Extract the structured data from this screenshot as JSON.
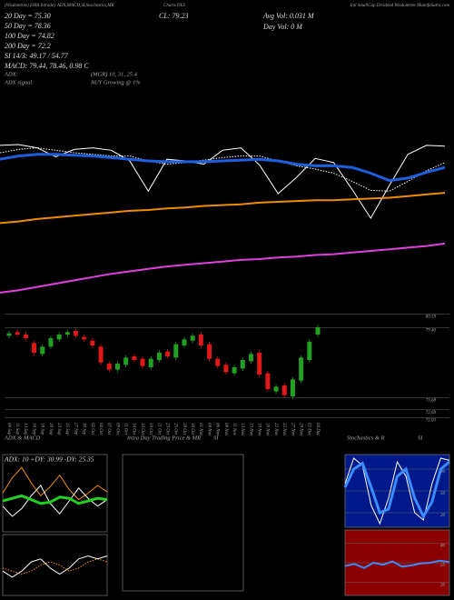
{
  "header": {
    "top_left": "(Wisdomtree) EMA Intraday ADX,MACD,SI,Stochastics,MR",
    "top_mid": "Charts DLS",
    "top_right": "Intl SmallCap Dividend Wisdomtree MunafaSutra.com",
    "ma20": "20 Day = 75.30",
    "ma50": "50 Day = 78.36",
    "ma100": "100 Day = 74.82",
    "ma200": "200 Day = 72.2",
    "si": "SI 14/3: 49.17 / 54.77",
    "macd": "MACD: 79.44, 78.46, 0.98 C",
    "close": "CL: 79.23",
    "avg_vol": "Avg Vol: 0.031 M",
    "day_vol": "Day Vol: 0 M",
    "adx_label": "ADX:",
    "adx_value": "(MGR) 10, 31, 25.4",
    "adx_signal_label": "ADX signal:",
    "adx_signal": "BUY Growing @ 1%"
  },
  "intraday": {
    "title": "Intra Day Trading Price & MR",
    "title_right": "SI"
  },
  "chart_data": [
    {
      "type": "line",
      "ylim": [
        62,
        82
      ],
      "series": [
        {
          "color": "#ffffff",
          "values": [
            80.9,
            81.0,
            80.6,
            79.5,
            80.4,
            80.6,
            80.3,
            79.0,
            75.3,
            79.2,
            79.0,
            78.6,
            80.3,
            80.6,
            78.5,
            75.0,
            77.0,
            79.3,
            78.8,
            75.5,
            72.0,
            76.0,
            79.8,
            80.9,
            80.8
          ]
        },
        {
          "color": "#ffffff",
          "dash": true,
          "values": [
            80.0,
            80.4,
            80.6,
            80.3,
            80.0,
            79.8,
            79.6,
            79.6,
            79.0,
            78.6,
            78.8,
            79.1,
            79.4,
            79.6,
            79.6,
            79.0,
            78.4,
            78.0,
            77.5,
            76.5,
            75.4,
            75.3,
            76.5,
            77.8,
            78.8
          ]
        },
        {
          "color": "#1e5fe0",
          "width": 3,
          "values": [
            79.2,
            79.6,
            79.8,
            79.8,
            79.7,
            79.6,
            79.4,
            79.2,
            79.0,
            78.9,
            78.9,
            78.9,
            79.0,
            79.1,
            79.2,
            79.0,
            78.6,
            78.4,
            78.4,
            78.2,
            77.5,
            76.6,
            76.9,
            77.6,
            78.2
          ]
        },
        {
          "color": "#f08c00",
          "width": 2,
          "values": [
            71.4,
            71.6,
            71.9,
            72.1,
            72.3,
            72.5,
            72.7,
            72.9,
            73.0,
            73.2,
            73.3,
            73.5,
            73.6,
            73.7,
            73.9,
            74.0,
            74.1,
            74.2,
            74.2,
            74.3,
            74.4,
            74.5,
            74.7,
            74.9,
            75.1
          ]
        },
        {
          "color": "#e040e0",
          "width": 2,
          "values": [
            62.9,
            63.2,
            63.6,
            64.0,
            64.4,
            64.8,
            65.2,
            65.5,
            65.8,
            66.1,
            66.3,
            66.5,
            66.7,
            66.9,
            67.0,
            67.2,
            67.3,
            67.5,
            67.6,
            67.8,
            68.0,
            68.2,
            68.4,
            68.6,
            68.9
          ]
        }
      ]
    },
    {
      "type": "candlestick",
      "ylim": [
        72,
        81
      ],
      "yticks": [
        80.59,
        79.46,
        73.68,
        72.69,
        72.03
      ],
      "up_color": "#22a022",
      "down_color": "#e01818",
      "categories": [
        "09 Sep",
        "11 Sep",
        "13 Sep",
        "16 Sep",
        "18 Sep",
        "20 Sep",
        "23 Sep",
        "25 Sep",
        "27 Sep",
        "30 Sep",
        "02 Oct",
        "04 Oct",
        "07 Oct",
        "09 Oct",
        "11 Oct",
        "14 Oct",
        "16 Oct",
        "18 Oct",
        "21 Oct",
        "23 Oct",
        "25 Oct",
        "28 Oct",
        "30 Oct",
        "01 Nov",
        "04 Nov",
        "06 Nov",
        "08 Nov",
        "11 Nov",
        "13 Nov",
        "15 Nov",
        "18 Nov",
        "20 Nov",
        "22 Nov",
        "25 Nov",
        "27 Nov",
        "29 Nov",
        "02 Dec",
        "04 Dec"
      ],
      "open": [
        78.8,
        79.1,
        78.9,
        78.2,
        77.3,
        77.9,
        78.5,
        78.9,
        79.2,
        78.7,
        78.4,
        77.9,
        76.5,
        76.0,
        76.4,
        77.1,
        76.9,
        76.2,
        76.8,
        77.5,
        77.0,
        78.0,
        78.4,
        78.9,
        78.1,
        76.9,
        76.4,
        75.7,
        76.1,
        76.7,
        77.4,
        75.7,
        74.2,
        74.7,
        73.8,
        75.1,
        76.8,
        78.9
      ],
      "high": [
        79.2,
        79.3,
        79.1,
        78.4,
        78.1,
        78.8,
        79.1,
        79.3,
        79.4,
        78.9,
        78.6,
        78.1,
        76.7,
        76.7,
        77.2,
        77.3,
        77.1,
        77.1,
        77.6,
        77.7,
        78.3,
        78.7,
        79.0,
        79.1,
        78.3,
        77.1,
        76.6,
        76.4,
        77.0,
        77.5,
        77.6,
        75.9,
        74.8,
        74.9,
        75.4,
        77.2,
        78.5,
        79.7
      ],
      "low": [
        78.6,
        78.7,
        78.4,
        77.2,
        77.1,
        77.7,
        78.3,
        78.7,
        78.6,
        78.3,
        77.8,
        76.4,
        75.8,
        75.8,
        76.2,
        76.6,
        76.1,
        76.0,
        76.6,
        76.9,
        76.8,
        77.8,
        78.2,
        77.8,
        76.7,
        76.1,
        75.6,
        75.5,
        75.9,
        76.5,
        75.4,
        74.2,
        74.0,
        73.7,
        73.6,
        74.9,
        76.6,
        78.7
      ],
      "close": [
        79.0,
        78.9,
        78.6,
        77.4,
        77.9,
        78.6,
        78.9,
        79.1,
        78.8,
        78.5,
        78.0,
        76.6,
        76.0,
        76.5,
        77.0,
        76.8,
        76.3,
        76.9,
        77.4,
        77.1,
        78.1,
        78.5,
        78.8,
        78.0,
        76.9,
        76.3,
        75.8,
        76.2,
        76.8,
        77.3,
        75.6,
        74.4,
        74.6,
        73.9,
        75.2,
        77.0,
        78.3,
        79.5
      ]
    },
    {
      "type": "line",
      "title": "ADX & MACD",
      "subtitle": "ADX: 10 +DY: 30.99 -DY: 25.35",
      "ylim": [
        0,
        60
      ],
      "series": [
        {
          "color": "#f08c00",
          "values": [
            30,
            42,
            50,
            38,
            28,
            35,
            44,
            33,
            25,
            30,
            36,
            31
          ]
        },
        {
          "color": "#ffffff",
          "values": [
            20,
            12,
            18,
            28,
            36,
            22,
            14,
            24,
            34,
            26,
            20,
            25
          ]
        },
        {
          "color": "#22d022",
          "width": 3,
          "values": [
            24,
            26,
            28,
            25,
            22,
            23,
            27,
            26,
            22,
            24,
            26,
            25
          ]
        }
      ]
    },
    {
      "type": "line",
      "ylim": [
        -1,
        1
      ],
      "series": [
        {
          "color": "#f08c00",
          "dash": true,
          "values": [
            -0.1,
            -0.2,
            -0.3,
            -0.2,
            0.0,
            0.1,
            0.0,
            -0.2,
            -0.1,
            0.1,
            0.2,
            0.1
          ]
        },
        {
          "color": "#ffffff",
          "values": [
            -0.2,
            -0.4,
            -0.2,
            0.1,
            0.2,
            -0.1,
            -0.3,
            -0.1,
            0.2,
            0.3,
            0.2,
            0.3
          ]
        }
      ]
    },
    {
      "type": "line",
      "title": "Stochastics & R",
      "title_right": "SI",
      "ylim": [
        0,
        100
      ],
      "yticks": [
        80,
        50,
        20
      ],
      "background": "#00198a",
      "series": [
        {
          "color": "#ffffff",
          "values": [
            60,
            95,
            85,
            30,
            5,
            40,
            90,
            70,
            20,
            10,
            60,
            95,
            92
          ]
        },
        {
          "color": "#3b8cff",
          "width": 3,
          "values": [
            55,
            80,
            88,
            55,
            20,
            25,
            70,
            80,
            40,
            15,
            35,
            80,
            90
          ]
        }
      ]
    },
    {
      "type": "line",
      "ylim": [
        0,
        100
      ],
      "yticks": [
        80,
        50,
        20
      ],
      "background": "#8a0000",
      "series": [
        {
          "color": "#3b8cff",
          "width": 2,
          "values": [
            45,
            48,
            42,
            50,
            47,
            52,
            44,
            46,
            49,
            50,
            53,
            51
          ]
        }
      ]
    }
  ]
}
